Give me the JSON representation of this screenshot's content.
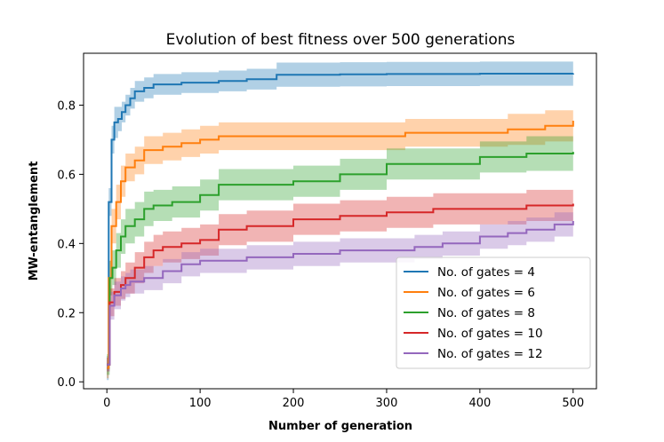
{
  "chart_data": {
    "type": "line",
    "title": "Evolution of best fitness over 500 generations",
    "xlabel": "Number of generation",
    "ylabel": "MW-entanglement",
    "xlim": [
      -25,
      525
    ],
    "ylim": [
      -0.02,
      0.95
    ],
    "xticks": [
      0,
      100,
      200,
      300,
      400,
      500
    ],
    "yticks": [
      0.0,
      0.2,
      0.4,
      0.6,
      0.8
    ],
    "xtick_labels": [
      "0",
      "100",
      "200",
      "300",
      "400",
      "500"
    ],
    "ytick_labels": [
      "0.0",
      "0.2",
      "0.4",
      "0.6",
      "0.8"
    ],
    "grid": false,
    "legend_position": "lower-right",
    "series": [
      {
        "name": "No. of gates = 4",
        "color": "#1f77b4",
        "x": [
          0,
          2,
          5,
          8,
          12,
          16,
          20,
          25,
          30,
          40,
          50,
          60,
          80,
          100,
          120,
          150,
          180,
          182,
          250,
          300,
          350,
          400,
          450,
          500
        ],
        "y": [
          0.04,
          0.52,
          0.7,
          0.75,
          0.76,
          0.78,
          0.8,
          0.82,
          0.84,
          0.85,
          0.86,
          0.86,
          0.865,
          0.865,
          0.87,
          0.875,
          0.875,
          0.888,
          0.889,
          0.89,
          0.89,
          0.891,
          0.891,
          0.892
        ],
        "band": [
          0.035,
          0.04,
          0.04,
          0.045,
          0.035,
          0.03,
          0.03,
          0.03,
          0.03,
          0.03,
          0.03,
          0.03,
          0.03,
          0.03,
          0.03,
          0.03,
          0.03,
          0.035,
          0.035,
          0.035,
          0.035,
          0.035,
          0.035,
          0.035
        ]
      },
      {
        "name": "No. of gates = 6",
        "color": "#ff7f0e",
        "x": [
          0,
          2,
          5,
          10,
          15,
          20,
          30,
          40,
          60,
          80,
          100,
          120,
          150,
          200,
          250,
          300,
          320,
          350,
          400,
          430,
          450,
          470,
          500
        ],
        "y": [
          0.04,
          0.3,
          0.45,
          0.52,
          0.58,
          0.62,
          0.64,
          0.67,
          0.68,
          0.69,
          0.7,
          0.71,
          0.71,
          0.71,
          0.71,
          0.71,
          0.72,
          0.72,
          0.72,
          0.73,
          0.73,
          0.74,
          0.755
        ],
        "band": [
          0.03,
          0.05,
          0.05,
          0.05,
          0.045,
          0.04,
          0.04,
          0.04,
          0.04,
          0.04,
          0.04,
          0.04,
          0.04,
          0.04,
          0.04,
          0.04,
          0.04,
          0.04,
          0.04,
          0.045,
          0.045,
          0.045,
          0.045
        ]
      },
      {
        "name": "No. of gates = 8",
        "color": "#2ca02c",
        "x": [
          0,
          3,
          6,
          10,
          15,
          20,
          30,
          40,
          50,
          70,
          100,
          110,
          120,
          150,
          200,
          250,
          300,
          350,
          400,
          450,
          500
        ],
        "y": [
          0.05,
          0.3,
          0.33,
          0.38,
          0.42,
          0.45,
          0.47,
          0.5,
          0.51,
          0.52,
          0.54,
          0.54,
          0.57,
          0.57,
          0.58,
          0.6,
          0.63,
          0.63,
          0.65,
          0.66,
          0.665
        ],
        "band": [
          0.03,
          0.05,
          0.05,
          0.05,
          0.05,
          0.05,
          0.05,
          0.05,
          0.045,
          0.045,
          0.045,
          0.045,
          0.045,
          0.045,
          0.045,
          0.045,
          0.045,
          0.045,
          0.045,
          0.05,
          0.05
        ]
      },
      {
        "name": "No. of gates = 10",
        "color": "#d62728",
        "x": [
          0,
          3,
          8,
          15,
          20,
          30,
          40,
          50,
          60,
          80,
          100,
          120,
          150,
          200,
          250,
          300,
          350,
          400,
          450,
          500
        ],
        "y": [
          0.05,
          0.23,
          0.26,
          0.28,
          0.3,
          0.33,
          0.36,
          0.38,
          0.39,
          0.4,
          0.41,
          0.44,
          0.45,
          0.47,
          0.48,
          0.49,
          0.5,
          0.5,
          0.51,
          0.515
        ],
        "band": [
          0.02,
          0.04,
          0.04,
          0.04,
          0.045,
          0.045,
          0.045,
          0.045,
          0.045,
          0.045,
          0.045,
          0.045,
          0.045,
          0.045,
          0.045,
          0.045,
          0.045,
          0.045,
          0.045,
          0.045
        ]
      },
      {
        "name": "No. of gates = 12",
        "color": "#9467bd",
        "x": [
          0,
          3,
          8,
          15,
          20,
          25,
          40,
          60,
          80,
          100,
          150,
          200,
          250,
          300,
          330,
          360,
          400,
          430,
          450,
          480,
          500
        ],
        "y": [
          0.05,
          0.22,
          0.25,
          0.27,
          0.28,
          0.29,
          0.3,
          0.32,
          0.34,
          0.35,
          0.36,
          0.37,
          0.38,
          0.38,
          0.39,
          0.4,
          0.42,
          0.43,
          0.44,
          0.455,
          0.465
        ],
        "band": [
          0.02,
          0.04,
          0.04,
          0.035,
          0.035,
          0.035,
          0.035,
          0.035,
          0.035,
          0.035,
          0.035,
          0.035,
          0.035,
          0.035,
          0.035,
          0.035,
          0.035,
          0.035,
          0.035,
          0.035,
          0.035
        ]
      }
    ]
  }
}
